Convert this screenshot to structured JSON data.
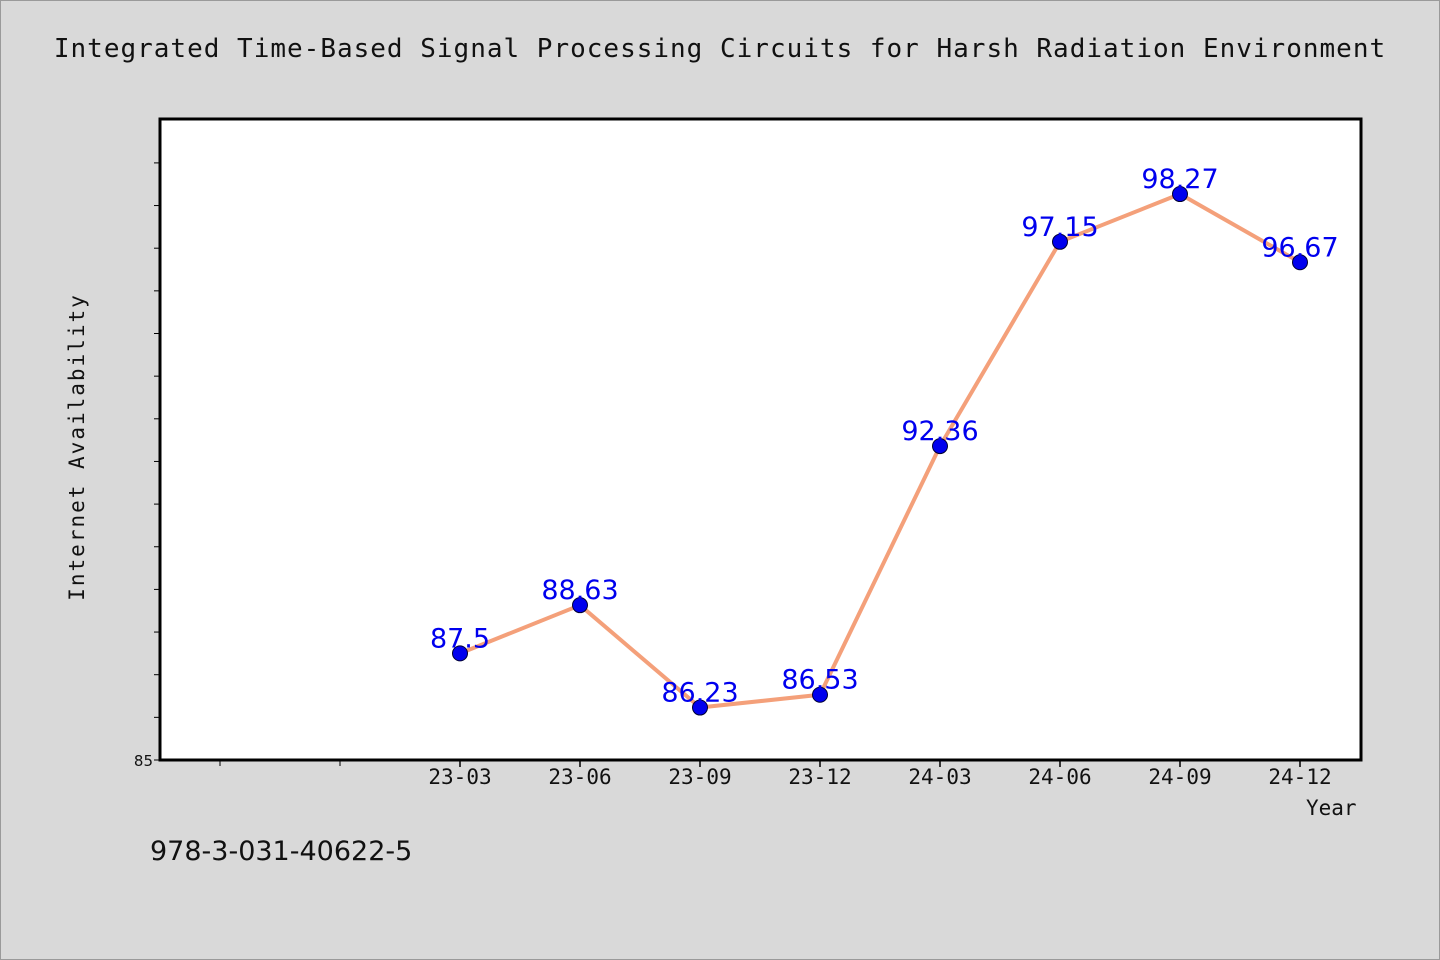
{
  "chart_data": {
    "type": "line",
    "title": "Integrated Time-Based Signal Processing Circuits for Harsh Radiation Environment",
    "xlabel": "Year",
    "ylabel": "Internet Availability",
    "categories": [
      "23-03",
      "23-06",
      "23-09",
      "23-12",
      "24-03",
      "24-06",
      "24-09",
      "24-12"
    ],
    "series": [
      {
        "values": [
          87.5,
          88.63,
          86.23,
          86.53,
          92.36,
          97.15,
          98.27,
          96.67
        ],
        "labels": [
          "87.5",
          "88.63",
          "86.23",
          "86.53",
          "92.36",
          "97.15",
          "98.27",
          "96.67"
        ]
      }
    ],
    "ylim": [
      85,
      100
    ],
    "y_tick_labels": [
      "85"
    ],
    "grid": false,
    "line_color": "#f4a07a",
    "marker_color": "#0000ee",
    "data_label_color": "#0000ee"
  },
  "annotation": "978-3-031-40622-5"
}
